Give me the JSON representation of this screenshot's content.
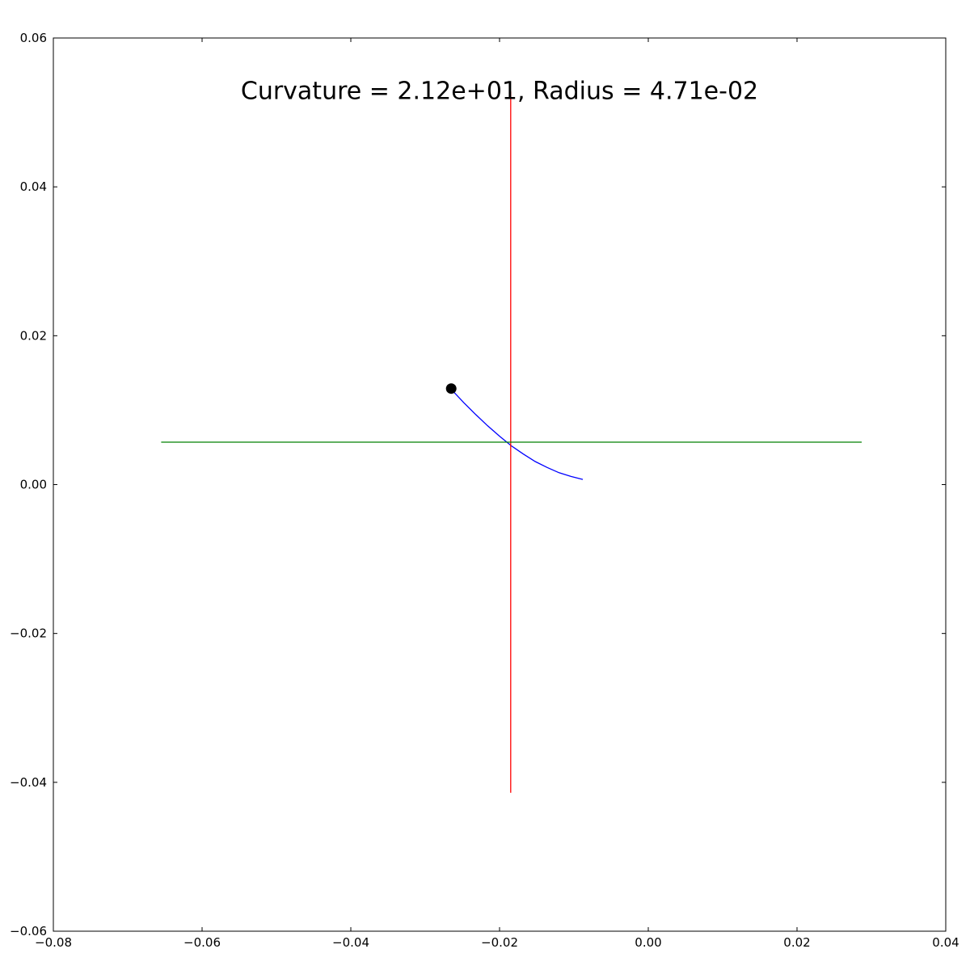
{
  "chart_data": {
    "type": "line",
    "title": "",
    "xlabel": "",
    "ylabel": "",
    "xlim": [
      -0.08,
      0.04
    ],
    "ylim": [
      -0.06,
      0.06
    ],
    "x_ticks": [
      -0.08,
      -0.06,
      -0.04,
      -0.02,
      0.0,
      0.02,
      0.04
    ],
    "x_tick_labels": [
      "−0.08",
      "−0.06",
      "−0.04",
      "−0.02",
      "0.00",
      "0.02",
      "0.04"
    ],
    "y_ticks": [
      -0.06,
      -0.04,
      -0.02,
      0.0,
      0.02,
      0.04,
      0.06
    ],
    "y_tick_labels": [
      "−0.06",
      "−0.04",
      "−0.02",
      "0.00",
      "0.02",
      "0.04",
      "0.06"
    ],
    "grid": false,
    "annotation": {
      "text": "Curvature = 2.12e+01, Radius = 4.71e-02",
      "x": -0.02,
      "y": 0.053
    },
    "series": [
      {
        "color": "#0000ff",
        "x": [
          -0.0264,
          -0.0248,
          -0.0232,
          -0.0216,
          -0.02,
          -0.0184,
          -0.0168,
          -0.0152,
          -0.0136,
          -0.012,
          -0.0104,
          -0.0088
        ],
        "y": [
          0.0127,
          0.011,
          0.0094,
          0.0079,
          0.0065,
          0.0052,
          0.0041,
          0.0031,
          0.0023,
          0.0016,
          0.0011,
          0.0007
        ]
      },
      {
        "color": "#ff0000",
        "x": [
          -0.0185,
          -0.0185
        ],
        "y": [
          -0.0414,
          0.0528
        ]
      },
      {
        "color": "#008000",
        "x": [
          -0.0655,
          0.0287
        ],
        "y": [
          0.0057,
          0.0057
        ]
      }
    ],
    "points": [
      {
        "x": -0.0265,
        "y": 0.0129,
        "color": "#000000"
      }
    ]
  }
}
